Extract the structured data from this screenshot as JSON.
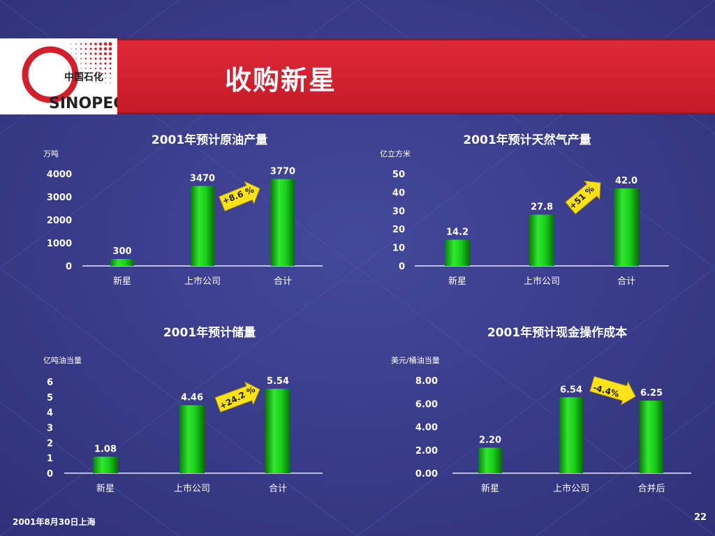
{
  "slide": {
    "title": "收购新星",
    "footer": "2001年8月30日上海",
    "page_number": "22",
    "colors": {
      "banner": "#d11f2c",
      "background": "#3a3d8c",
      "bar": "#1fd61f",
      "arrow": "#ffe21a"
    }
  },
  "logo": {
    "text": "中国石化",
    "brand": "SINOPEC"
  },
  "chart_data": [
    {
      "type": "bar",
      "title": "2001年预计原油产量",
      "ylabel": "万吨",
      "categories": [
        "新星",
        "上市公司",
        "合计"
      ],
      "values": [
        300,
        3470,
        3770
      ],
      "value_labels": [
        "300",
        "3470",
        "3770"
      ],
      "ylim": [
        0,
        4000
      ],
      "yticks": [
        "0",
        "1000",
        "2000",
        "3000",
        "4000"
      ],
      "annotation": "+8.6 %"
    },
    {
      "type": "bar",
      "title": "2001年预计天然气产量",
      "ylabel": "亿立方米",
      "categories": [
        "新星",
        "上市公司",
        "合计"
      ],
      "values": [
        14.2,
        27.8,
        42.0
      ],
      "value_labels": [
        "14.2",
        "27.8",
        "42.0"
      ],
      "ylim": [
        0,
        50
      ],
      "yticks": [
        "0",
        "10",
        "20",
        "30",
        "40",
        "50"
      ],
      "annotation": "+51 %"
    },
    {
      "type": "bar",
      "title": "2001年预计储量",
      "ylabel": "亿吨油当量",
      "categories": [
        "新星",
        "上市公司",
        "合计"
      ],
      "values": [
        1.08,
        4.46,
        5.54
      ],
      "value_labels": [
        "1.08",
        "4.46",
        "5.54"
      ],
      "ylim": [
        0,
        6
      ],
      "yticks": [
        "0",
        "1",
        "2",
        "3",
        "4",
        "5",
        "6"
      ],
      "annotation": "+24.2 %"
    },
    {
      "type": "bar",
      "title": "2001年预计现金操作成本",
      "ylabel": "美元/桶油当量",
      "categories": [
        "新星",
        "上市公司",
        "合并后"
      ],
      "values": [
        2.2,
        6.54,
        6.25
      ],
      "value_labels": [
        "2.20",
        "6.54",
        "6.25"
      ],
      "ylim": [
        0,
        8
      ],
      "yticks": [
        "0.00",
        "2.00",
        "4.00",
        "6.00",
        "8.00"
      ],
      "annotation": "-4.4%"
    }
  ]
}
